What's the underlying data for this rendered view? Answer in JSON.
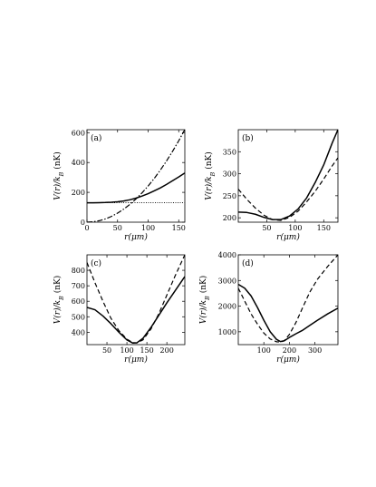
{
  "chart_data": [
    {
      "type": "line",
      "panel_label": "(a)",
      "xlabel": "r(μm)",
      "ylabel": "V(r)/k_B (nK)",
      "xlim": [
        0,
        160
      ],
      "ylim": [
        0,
        620
      ],
      "xticks": [
        0,
        50,
        100,
        150
      ],
      "yticks": [
        0,
        200,
        400,
        600
      ],
      "series": [
        {
          "style": "solid",
          "x": [
            0,
            10,
            20,
            30,
            40,
            50,
            60,
            70,
            80,
            90,
            100,
            110,
            120,
            130,
            140,
            150,
            160
          ],
          "y": [
            130,
            130,
            131,
            132,
            134,
            137,
            142,
            150,
            161,
            175,
            191,
            210,
            230,
            253,
            278,
            303,
            330
          ]
        },
        {
          "style": "dashdot",
          "x": [
            0,
            10,
            20,
            30,
            40,
            50,
            60,
            70,
            80,
            90,
            100,
            110,
            120,
            130,
            140,
            150,
            160
          ],
          "y": [
            0,
            2.4,
            9.7,
            21.8,
            38.8,
            60.6,
            87.3,
            118.8,
            155.2,
            196.4,
            242.5,
            293.4,
            349.2,
            409.8,
            475.3,
            545.6,
            620.8
          ]
        },
        {
          "style": "dotted",
          "x": [
            0,
            160
          ],
          "y": [
            130,
            130
          ]
        }
      ]
    },
    {
      "type": "line",
      "panel_label": "(b)",
      "xlabel": "r(μm)",
      "ylabel": "V(r)/k_B (nK)",
      "xlim": [
        0,
        175
      ],
      "ylim": [
        190,
        400
      ],
      "xticks": [
        50,
        100,
        150
      ],
      "yticks": [
        200,
        250,
        300,
        350
      ],
      "series": [
        {
          "style": "solid",
          "x": [
            0,
            15,
            30,
            45,
            60,
            75,
            90,
            105,
            120,
            135,
            150,
            165,
            175
          ],
          "y": [
            213,
            212,
            208,
            201,
            196,
            196,
            204,
            220,
            245,
            280,
            320,
            370,
            400
          ]
        },
        {
          "style": "dashed",
          "x": [
            0,
            15,
            30,
            45,
            60,
            75,
            90,
            105,
            120,
            135,
            150,
            165,
            175
          ],
          "y": [
            265,
            242,
            222,
            206,
            196,
            194,
            201,
            215,
            236,
            260,
            288,
            318,
            336
          ]
        }
      ]
    },
    {
      "type": "line",
      "panel_label": "(c)",
      "xlabel": "r(μm)",
      "ylabel": "V(r)/k_B (nK)",
      "xlim": [
        0,
        245
      ],
      "ylim": [
        320,
        900
      ],
      "xticks": [
        50,
        100,
        150,
        200
      ],
      "yticks": [
        400,
        500,
        600,
        700,
        800
      ],
      "series": [
        {
          "style": "solid",
          "x": [
            0,
            20,
            40,
            60,
            80,
            100,
            115,
            125,
            140,
            160,
            180,
            200,
            220,
            245
          ],
          "y": [
            560,
            545,
            505,
            455,
            400,
            350,
            330,
            332,
            360,
            430,
            510,
            590,
            665,
            760
          ]
        },
        {
          "style": "dashed",
          "x": [
            0,
            20,
            40,
            60,
            80,
            100,
            115,
            125,
            140,
            160,
            180,
            200,
            220,
            245
          ],
          "y": [
            850,
            720,
            600,
            490,
            410,
            355,
            333,
            331,
            350,
            420,
            520,
            640,
            760,
            900
          ]
        }
      ]
    },
    {
      "type": "line",
      "panel_label": "(d)",
      "xlabel": "r(μm)",
      "ylabel": "V(r)/k_B (nK)",
      "xlim": [
        0,
        390
      ],
      "ylim": [
        500,
        4000
      ],
      "xticks": [
        100,
        200,
        300
      ],
      "yticks": [
        1000,
        2000,
        3000,
        4000
      ],
      "series": [
        {
          "style": "solid",
          "x": [
            0,
            25,
            50,
            75,
            100,
            125,
            150,
            165,
            180,
            200,
            225,
            250,
            280,
            310,
            350,
            390
          ],
          "y": [
            2850,
            2700,
            2400,
            1950,
            1450,
            1000,
            700,
            620,
            650,
            780,
            920,
            1050,
            1250,
            1450,
            1700,
            1920
          ]
        },
        {
          "style": "dashed",
          "x": [
            0,
            25,
            50,
            75,
            100,
            125,
            150,
            165,
            180,
            200,
            225,
            250,
            280,
            310,
            350,
            390
          ],
          "y": [
            2700,
            2200,
            1700,
            1300,
            950,
            720,
            610,
            600,
            650,
            900,
            1350,
            1900,
            2550,
            3050,
            3550,
            4000
          ]
        }
      ]
    }
  ]
}
